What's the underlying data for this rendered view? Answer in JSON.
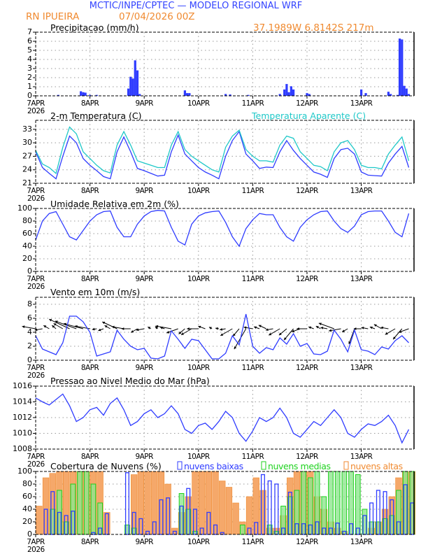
{
  "header": {
    "title": "MCTIC/INPE/CPTEC — MODELO REGIONAL WRF",
    "station": "RN IPUEIRA",
    "run": "07/04/2026 00Z",
    "coords": "37.1989W 6.8142S 217m"
  },
  "colors": {
    "blue": "#2f3cff",
    "cyan": "#1ec8c8",
    "orange": "#f08a30",
    "orange_fill": "#f5a86a",
    "green": "#1ed21e",
    "green_fill": "#8ee68e",
    "title_blue": "#3344ff"
  },
  "x_axis": {
    "labels": [
      "7APR",
      "8APR",
      "9APR",
      "10APR",
      "11APR",
      "12APR",
      "13APR"
    ],
    "year": "2026"
  },
  "times": [
    "07APR00Z",
    "07APR03Z",
    "07APR06Z",
    "07APR09Z",
    "07APR12Z",
    "07APR15Z",
    "07APR18Z",
    "07APR21Z",
    "08APR00Z",
    "08APR03Z",
    "08APR06Z",
    "08APR09Z",
    "08APR12Z",
    "08APR15Z",
    "08APR18Z",
    "08APR21Z",
    "09APR00Z",
    "09APR03Z",
    "09APR06Z",
    "09APR09Z",
    "09APR12Z",
    "09APR15Z",
    "09APR18Z",
    "09APR21Z",
    "10APR00Z",
    "10APR03Z",
    "10APR06Z",
    "10APR09Z",
    "10APR12Z",
    "10APR15Z",
    "10APR18Z",
    "10APR21Z",
    "11APR00Z",
    "11APR03Z",
    "11APR06Z",
    "11APR09Z",
    "11APR12Z",
    "11APR15Z",
    "11APR18Z",
    "11APR21Z",
    "12APR00Z",
    "12APR03Z",
    "12APR06Z",
    "12APR09Z",
    "12APR12Z",
    "12APR15Z",
    "12APR18Z",
    "12APR21Z",
    "13APR00Z",
    "13APR03Z",
    "13APR06Z",
    "13APR09Z",
    "13APR12Z",
    "13APR15Z",
    "13APR18Z",
    "13APR21Z"
  ],
  "chart_data": [
    {
      "id": "precip",
      "type": "bar",
      "title": "Precipitacao (mm/h)",
      "ylim": [
        0,
        7
      ],
      "yticks": [
        0,
        1,
        2,
        3,
        4,
        5,
        6,
        7
      ],
      "grid": true,
      "points": [
        [
          "07APR10Z",
          0.1
        ],
        [
          "07APR20Z",
          0.5
        ],
        [
          "07APR21Z",
          0.4
        ],
        [
          "07APR22Z",
          0.35
        ],
        [
          "08APR00Z",
          0.1
        ],
        [
          "08APR03Z",
          0.1
        ],
        [
          "08APR17Z",
          0.8
        ],
        [
          "08APR18Z",
          2.1
        ],
        [
          "08APR19Z",
          1.9
        ],
        [
          "08APR20Z",
          3.9
        ],
        [
          "08APR21Z",
          2.8
        ],
        [
          "08APR22Z",
          0.2
        ],
        [
          "09APR18Z",
          0.6
        ],
        [
          "09APR19Z",
          0.3
        ],
        [
          "09APR20Z",
          0.3
        ],
        [
          "10APR12Z",
          0.2
        ],
        [
          "10APR14Z",
          0.15
        ],
        [
          "10APR22Z",
          0.1
        ],
        [
          "11APR12Z",
          0.2
        ],
        [
          "11APR14Z",
          0.7
        ],
        [
          "11APR15Z",
          1.3
        ],
        [
          "11APR16Z",
          0.4
        ],
        [
          "11APR17Z",
          1.05
        ],
        [
          "11APR18Z",
          0.7
        ],
        [
          "12APR00Z",
          0.3
        ],
        [
          "12APR01Z",
          0.2
        ],
        [
          "13APR00Z",
          0.7
        ],
        [
          "13APR02Z",
          0.3
        ],
        [
          "13APR12Z",
          0.45
        ],
        [
          "13APR13Z",
          0.2
        ],
        [
          "13APR16Z",
          0.1
        ],
        [
          "13APR17Z",
          6.3
        ],
        [
          "13APR18Z",
          6.2
        ],
        [
          "13APR19Z",
          1.1
        ],
        [
          "13APR20Z",
          0.8
        ],
        [
          "13APR21Z",
          0.2
        ]
      ]
    },
    {
      "id": "temp",
      "type": "line",
      "title": "2-m Temperatura (C)",
      "ylim": [
        21,
        35
      ],
      "yticks": [
        21,
        24,
        27,
        30,
        33
      ],
      "grid": true,
      "series": [
        {
          "name": "2-m Temperatura (C)",
          "color": "#2f3cff",
          "values": [
            28,
            24.5,
            23.2,
            22,
            27,
            31.5,
            30,
            26.5,
            25,
            23.8,
            22.5,
            22,
            28,
            31.3,
            28,
            24.3,
            23.8,
            23.2,
            22.6,
            22.8,
            28,
            31.7,
            27.5,
            26,
            24.5,
            23.5,
            22.8,
            22,
            27,
            30.5,
            32.5,
            27.5,
            26,
            24.3,
            24.6,
            24.5,
            28,
            30.5,
            28.3,
            26.5,
            25,
            23.5,
            23,
            22.3,
            26.5,
            28.5,
            28.8,
            27.5,
            23.5,
            22.8,
            22.7,
            22.6,
            25.5,
            27.5,
            29.2,
            24.5
          ]
        },
        {
          "name": "Temperatura Aparente (C)",
          "color": "#1ec8c8",
          "values": [
            28.3,
            25.3,
            24.5,
            23.2,
            29,
            33.5,
            32,
            28,
            26.5,
            25,
            23.8,
            23.3,
            29.5,
            32.5,
            29.5,
            26,
            25.5,
            25,
            24.5,
            24.5,
            29.5,
            32.5,
            28.5,
            27,
            26,
            25,
            24,
            23.5,
            29,
            31.5,
            32.8,
            28.5,
            27,
            26,
            26,
            25.7,
            29.5,
            31.5,
            31,
            28,
            26.5,
            25,
            24.7,
            23.8,
            28,
            30,
            30.5,
            28.5,
            25,
            24.5,
            24.5,
            24.2,
            27.5,
            29.5,
            31.3,
            26
          ]
        }
      ]
    },
    {
      "id": "rh",
      "type": "line",
      "title": "Umidade Relativa em 2m (%)",
      "ylim": [
        0,
        100
      ],
      "yticks": [
        0,
        20,
        40,
        60,
        80,
        100
      ],
      "grid": true,
      "series": [
        {
          "color": "#2f3cff",
          "values": [
            50,
            80,
            92,
            95,
            75,
            55,
            50,
            65,
            80,
            90,
            95,
            96,
            70,
            55,
            55,
            75,
            88,
            95,
            97,
            96,
            70,
            48,
            42,
            75,
            88,
            93,
            95,
            96,
            78,
            55,
            40,
            68,
            82,
            92,
            90,
            90,
            70,
            55,
            48,
            70,
            82,
            90,
            95,
            96,
            80,
            68,
            62,
            72,
            90,
            95,
            96,
            96,
            80,
            62,
            55,
            92
          ]
        }
      ]
    },
    {
      "id": "wind",
      "type": "line",
      "title": "Vento em 10m (m/s)",
      "ylim": [
        0,
        9
      ],
      "yticks": [
        0,
        2,
        4,
        6,
        8
      ],
      "grid": true,
      "series": [
        {
          "color": "#2f3cff",
          "values": [
            3.5,
            1.6,
            1.2,
            0.8,
            2.5,
            6.3,
            6.3,
            5.5,
            4.0,
            0.6,
            0.9,
            1.2,
            4.3,
            3.0,
            2.0,
            1.5,
            1.7,
            0.3,
            0.2,
            0.6,
            4.2,
            3.0,
            1.7,
            3.0,
            2.8,
            1.5,
            0.2,
            0.2,
            1.0,
            3.5,
            2.2,
            6.6,
            2.0,
            1.0,
            1.8,
            1.5,
            3.2,
            2.3,
            3.8,
            2.0,
            2.4,
            0.9,
            0.8,
            1.3,
            4.3,
            3.0,
            1.2,
            4.3,
            1.5,
            1.3,
            0.8,
            1.9,
            1.6,
            2.8,
            3.5,
            2.5
          ]
        }
      ],
      "wind_direction_deg": [
        100,
        80,
        120,
        130,
        120,
        115,
        110,
        105,
        100,
        80,
        70,
        120,
        115,
        100,
        90,
        60,
        80,
        120,
        130,
        110,
        100,
        70,
        50,
        60,
        90,
        110,
        120,
        100,
        80,
        60,
        40,
        30,
        100,
        110,
        115,
        80,
        60,
        50,
        40,
        70,
        90,
        110,
        120,
        100,
        110,
        80,
        60,
        20,
        90,
        100,
        110,
        120,
        100,
        60,
        40,
        70
      ],
      "vector_baseline": 4.5
    },
    {
      "id": "pres",
      "type": "line",
      "title": "Pressao ao Nivel Medio do Mar (hPa)",
      "ylim": [
        1008,
        1016
      ],
      "yticks": [
        1008,
        1010,
        1012,
        1014,
        1016
      ],
      "grid": true,
      "series": [
        {
          "color": "#2f3cff",
          "values": [
            1014.5,
            1014,
            1013.6,
            1014.3,
            1015,
            1013.5,
            1011.5,
            1012,
            1013,
            1013.3,
            1012.3,
            1013.8,
            1014.5,
            1013,
            1011,
            1011.5,
            1012.5,
            1013,
            1012,
            1012.5,
            1013.5,
            1012.5,
            1010.5,
            1010,
            1011,
            1011.3,
            1010.5,
            1011.5,
            1012.8,
            1012,
            1010,
            1009,
            1010.3,
            1012,
            1011.5,
            1012,
            1013.2,
            1012,
            1010,
            1009.5,
            1010.5,
            1011.5,
            1011,
            1012,
            1013,
            1012,
            1010,
            1009.5,
            1010.5,
            1011.2,
            1011,
            1011.5,
            1012.3,
            1011,
            1008.8,
            1010.5
          ]
        }
      ]
    },
    {
      "id": "cloud",
      "type": "bar",
      "title": "Cobertura de Nuvens (%)",
      "ylim": [
        0,
        100
      ],
      "yticks": [
        0,
        20,
        40,
        60,
        80,
        100
      ],
      "grid": true,
      "legend": "top",
      "series": [
        {
          "name": "nuvens altas",
          "color": "#f08a30",
          "values": [
            45,
            90,
            97,
            100,
            100,
            100,
            100,
            100,
            100,
            100,
            35,
            0,
            0,
            0,
            95,
            100,
            100,
            100,
            100,
            80,
            10,
            35,
            60,
            100,
            100,
            100,
            100,
            85,
            75,
            50,
            20,
            60,
            90,
            70,
            10,
            10,
            30,
            90,
            100,
            100,
            100,
            60,
            40,
            20,
            10,
            5,
            0,
            0,
            0,
            10,
            20,
            40,
            60,
            90,
            100,
            100
          ]
        },
        {
          "name": "nuvens medias",
          "color": "#1ed21e",
          "values": [
            0,
            0,
            40,
            70,
            20,
            80,
            100,
            100,
            80,
            50,
            0,
            0,
            0,
            15,
            10,
            0,
            0,
            0,
            0,
            0,
            0,
            65,
            40,
            5,
            0,
            0,
            0,
            0,
            0,
            0,
            15,
            0,
            0,
            0,
            15,
            5,
            45,
            60,
            70,
            100,
            90,
            100,
            60,
            100,
            100,
            100,
            100,
            95,
            40,
            20,
            20,
            25,
            30,
            70,
            100,
            100
          ]
        },
        {
          "name": "nuvens baixas",
          "color": "#2f3cff",
          "values": [
            0,
            40,
            68,
            35,
            30,
            37,
            0,
            0,
            3,
            10,
            33,
            0,
            0,
            98,
            35,
            25,
            5,
            20,
            55,
            58,
            5,
            45,
            73,
            40,
            10,
            35,
            15,
            3,
            0,
            0,
            0,
            10,
            19,
            95,
            85,
            80,
            10,
            67,
            17,
            17,
            15,
            20,
            10,
            10,
            18,
            5,
            17,
            10,
            30,
            50,
            70,
            68,
            55,
            20,
            79,
            50
          ]
        }
      ]
    }
  ]
}
